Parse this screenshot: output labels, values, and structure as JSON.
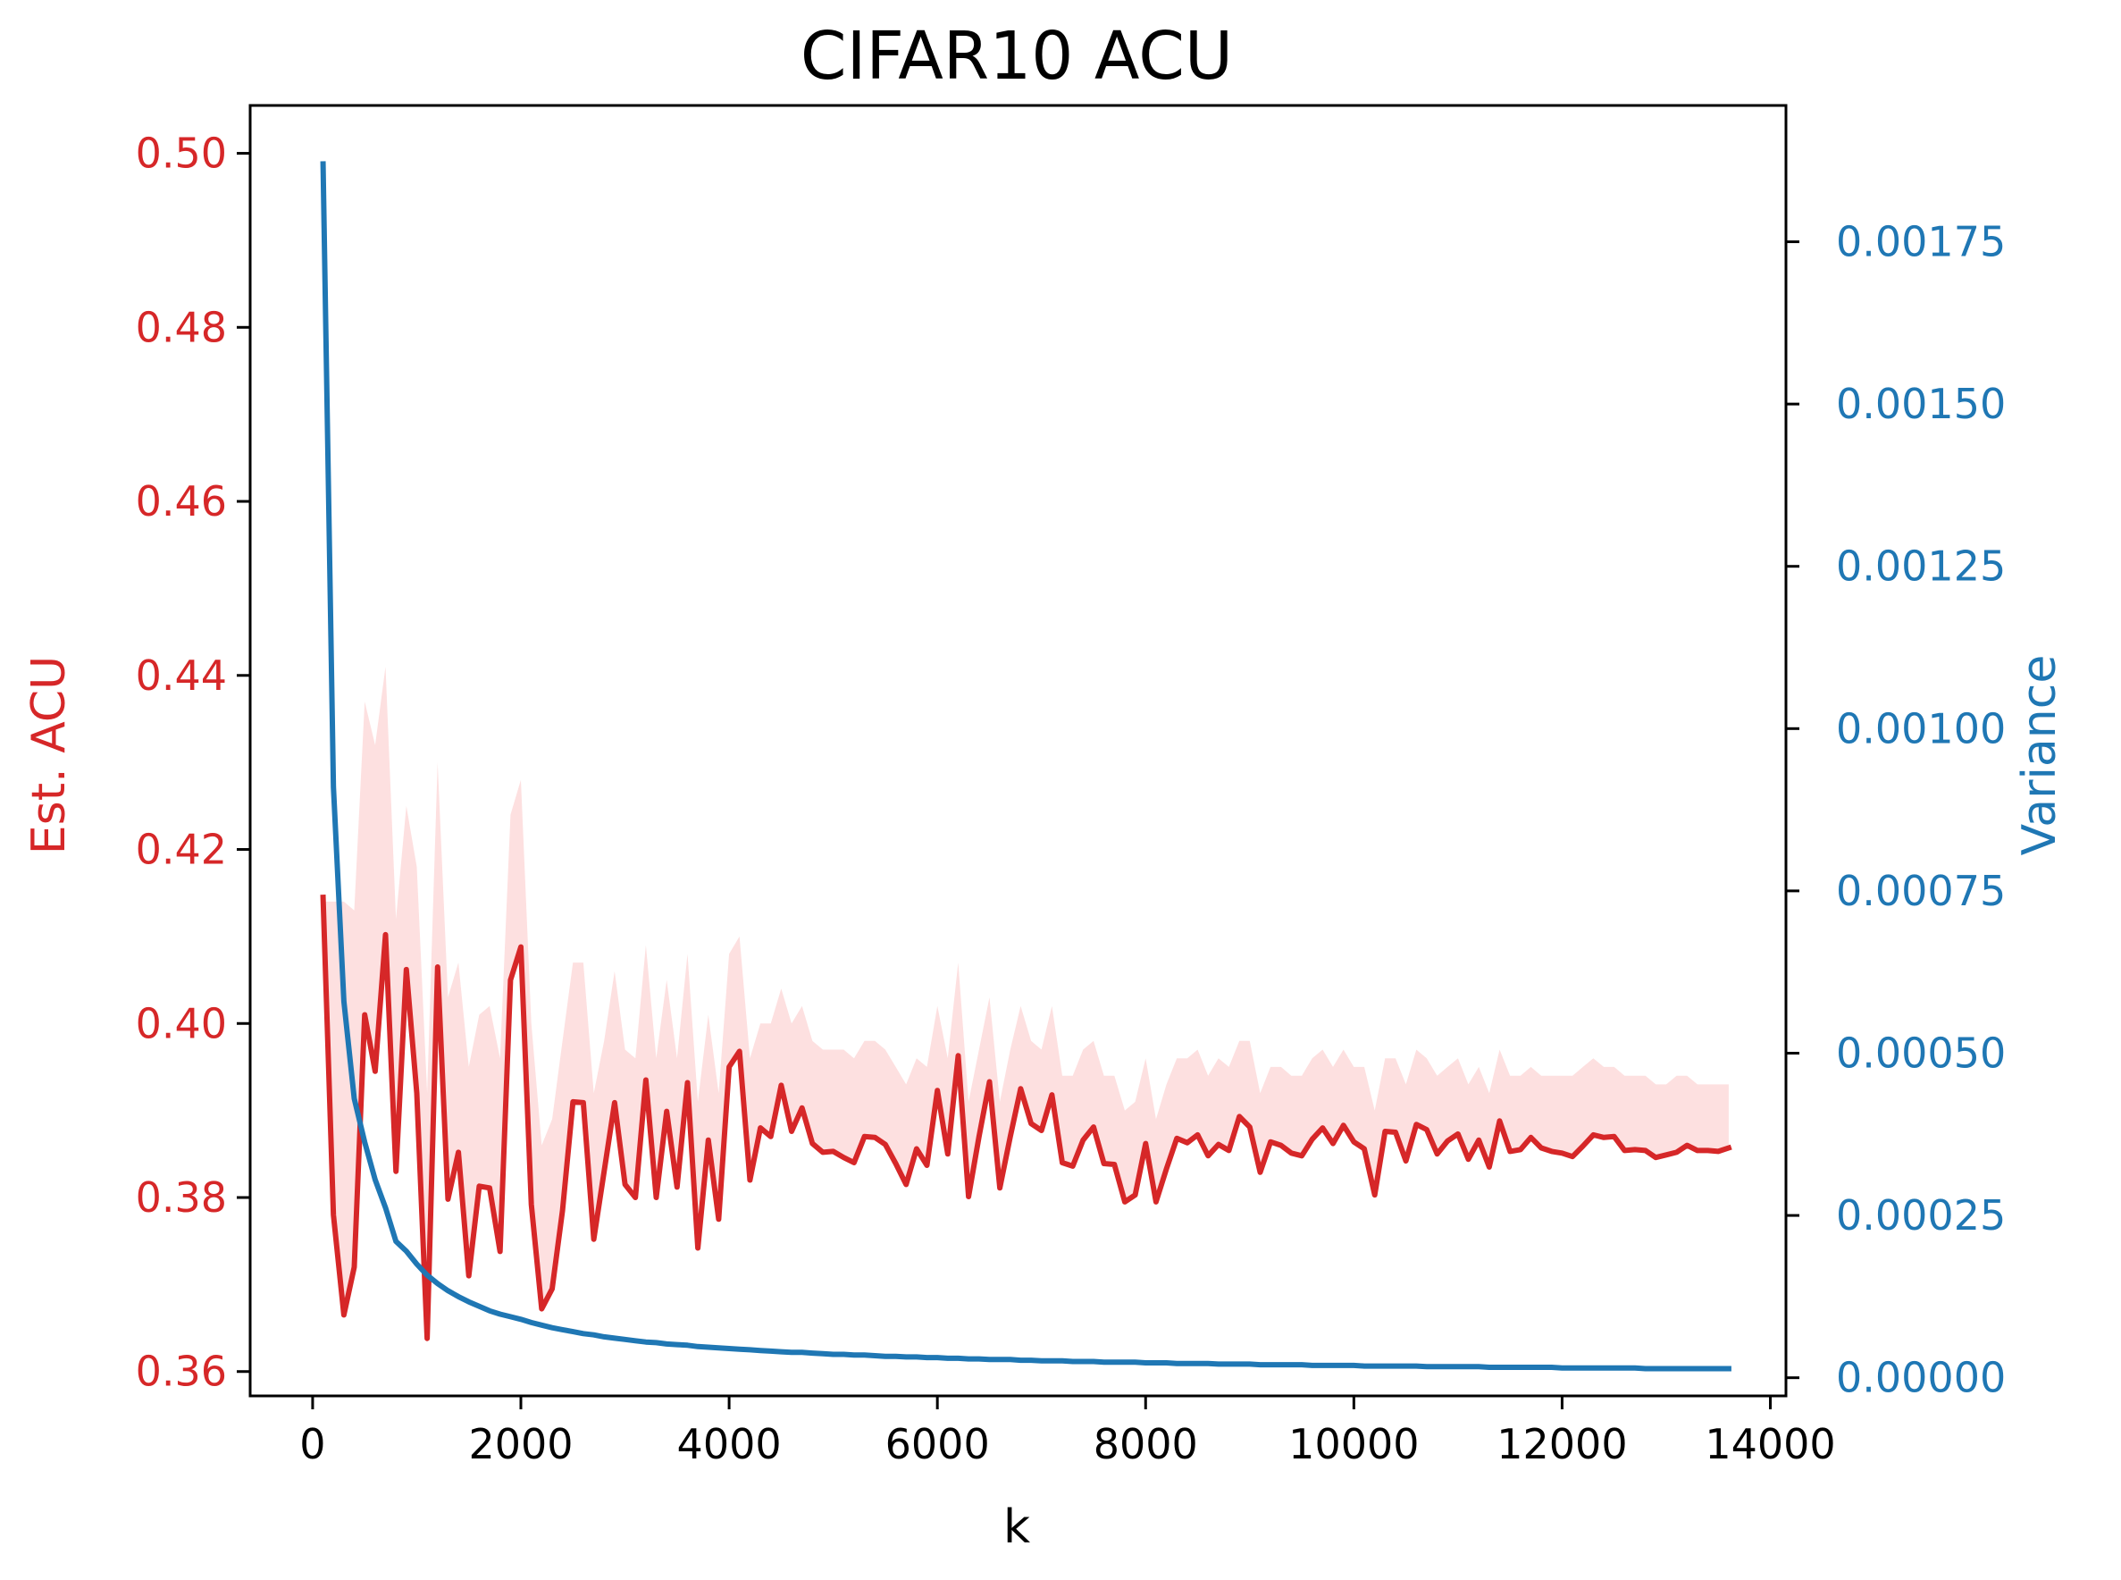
{
  "chart_data": {
    "type": "line",
    "title": "CIFAR10 ACU",
    "xlabel": "k",
    "ylabel_left": "Est. ACU",
    "ylabel_right": "Variance",
    "xlim": [
      -600,
      14150
    ],
    "ylim_left": [
      0.3572,
      0.5055
    ],
    "ylim_right": [
      -2.8e-05,
      0.00196
    ],
    "x_ticks": [
      0,
      2000,
      4000,
      6000,
      8000,
      10000,
      12000,
      14000
    ],
    "x_tick_labels": [
      "0",
      "2000",
      "4000",
      "6000",
      "8000",
      "10000",
      "12000",
      "14000"
    ],
    "y_left_ticks": [
      0.36,
      0.38,
      0.4,
      0.42,
      0.44,
      0.46,
      0.48,
      0.5
    ],
    "y_left_tick_labels": [
      "0.36",
      "0.38",
      "0.40",
      "0.42",
      "0.44",
      "0.46",
      "0.48",
      "0.50"
    ],
    "y_right_ticks": [
      0.0,
      0.00025,
      0.0005,
      0.00075,
      0.001,
      0.00125,
      0.0015,
      0.00175
    ],
    "y_right_tick_labels": [
      "0.00000",
      "0.00025",
      "0.00050",
      "0.00075",
      "0.00100",
      "0.00125",
      "0.00150",
      "0.00175"
    ],
    "colors": {
      "acu": "#d62728",
      "variance": "#1f77b4",
      "band": "#fde0e0",
      "axis": "#000000"
    },
    "series": [
      {
        "axis": "left",
        "color": "#d62728",
        "x": [
          100,
          200,
          300,
          400,
          500,
          600,
          700,
          800,
          900,
          1000,
          1100,
          1200,
          1300,
          1400,
          1500,
          1600,
          1700,
          1800,
          1900,
          2000,
          2100,
          2200,
          2300,
          2400,
          2500,
          2600,
          2700,
          2800,
          2900,
          3000,
          3100,
          3200,
          3300,
          3400,
          3500,
          3600,
          3700,
          3800,
          3900,
          4000,
          4100,
          4200,
          4300,
          4400,
          4500,
          4600,
          4700,
          4800,
          4900,
          5000,
          5100,
          5200,
          5300,
          5400,
          5500,
          5600,
          5700,
          5800,
          5900,
          6000,
          6100,
          6200,
          6300,
          6400,
          6500,
          6600,
          6700,
          6800,
          6900,
          7000,
          7100,
          7200,
          7300,
          7400,
          7500,
          7600,
          7700,
          7800,
          7900,
          8000,
          8100,
          8200,
          8300,
          8400,
          8500,
          8600,
          8700,
          8800,
          8900,
          9000,
          9100,
          9200,
          9300,
          9400,
          9500,
          9600,
          9700,
          9800,
          9900,
          10000,
          10100,
          10200,
          10300,
          10400,
          10500,
          10600,
          10700,
          10800,
          10900,
          11000,
          11100,
          11200,
          11300,
          11400,
          11500,
          11600,
          11700,
          11800,
          11900,
          12000,
          12100,
          12200,
          12300,
          12400,
          12500,
          12600,
          12700,
          12800,
          12900,
          13000,
          13100,
          13200,
          13300,
          13400,
          13500,
          13600
        ],
        "values": [
          0.4145,
          0.378,
          0.3665,
          0.372,
          0.401,
          0.3945,
          0.4102,
          0.383,
          0.4062,
          0.392,
          0.3638,
          0.4065,
          0.3798,
          0.3852,
          0.371,
          0.3813,
          0.3811,
          0.3738,
          0.405,
          0.4088,
          0.3792,
          0.3672,
          0.3695,
          0.3785,
          0.391,
          0.3909,
          0.3752,
          0.383,
          0.3909,
          0.3815,
          0.38,
          0.3935,
          0.38,
          0.3899,
          0.3812,
          0.3932,
          0.3742,
          0.3866,
          0.3775,
          0.395,
          0.3968,
          0.382,
          0.388,
          0.387,
          0.3929,
          0.3876,
          0.3903,
          0.3862,
          0.3852,
          0.3853,
          0.3846,
          0.384,
          0.387,
          0.3869,
          0.3861,
          0.3839,
          0.3815,
          0.3856,
          0.3837,
          0.3923,
          0.385,
          0.3963,
          0.3801,
          0.387,
          0.3933,
          0.3811,
          0.387,
          0.3925,
          0.3885,
          0.3877,
          0.3918,
          0.384,
          0.3836,
          0.3866,
          0.3881,
          0.3839,
          0.3838,
          0.3795,
          0.3803,
          0.3862,
          0.3795,
          0.3833,
          0.3868,
          0.3863,
          0.3872,
          0.3848,
          0.3861,
          0.3854,
          0.3893,
          0.3881,
          0.3829,
          0.3864,
          0.386,
          0.3851,
          0.3848,
          0.3867,
          0.388,
          0.3862,
          0.3883,
          0.3864,
          0.3856,
          0.3803,
          0.3876,
          0.3875,
          0.3842,
          0.3884,
          0.3878,
          0.385,
          0.3865,
          0.3873,
          0.3844,
          0.3866,
          0.3835,
          0.3888,
          0.3853,
          0.3855,
          0.3869,
          0.3857,
          0.3853,
          0.3851,
          0.3847,
          0.3859,
          0.3872,
          0.3869,
          0.387,
          0.3854,
          0.3855,
          0.3854,
          0.3846,
          0.3849,
          0.3852,
          0.386,
          0.3854,
          0.3854,
          0.3853,
          0.3857
        ]
      },
      {
        "axis": "left",
        "x": [
          100,
          200,
          300,
          400,
          500,
          600,
          700,
          800,
          900,
          1000,
          1100,
          1200,
          1300,
          1400,
          1500,
          1600,
          1700,
          1800,
          1900,
          2000,
          2100,
          2200,
          2300,
          2400,
          2500,
          2600,
          2700,
          2800,
          2900,
          3000,
          3100,
          3200,
          3300,
          3400,
          3500,
          3600,
          3700,
          3800,
          3900,
          4000,
          4100,
          4200,
          4300,
          4400,
          4500,
          4600,
          4700,
          4800,
          4900,
          5000,
          5100,
          5200,
          5300,
          5400,
          5500,
          5600,
          5700,
          5800,
          5900,
          6000,
          6100,
          6200,
          6300,
          6400,
          6500,
          6600,
          6700,
          6800,
          6900,
          7000,
          7100,
          7200,
          7300,
          7400,
          7500,
          7600,
          7700,
          7800,
          7900,
          8000,
          8100,
          8200,
          8300,
          8400,
          8500,
          8600,
          8700,
          8800,
          8900,
          9000,
          9100,
          9200,
          9300,
          9400,
          9500,
          9600,
          9700,
          9800,
          9900,
          10000,
          10100,
          10200,
          10300,
          10400,
          10500,
          10600,
          10700,
          10800,
          10900,
          11000,
          11100,
          11200,
          11300,
          11400,
          11500,
          11600,
          11700,
          11800,
          11900,
          12000,
          12100,
          12200,
          12300,
          12400,
          12500,
          12600,
          12700,
          12800,
          12900,
          13000,
          13100,
          13200,
          13300,
          13400,
          13500,
          13600
        ],
        "values_upper": [
          0.414,
          0.414,
          0.414,
          0.413,
          0.437,
          0.432,
          0.441,
          0.412,
          0.425,
          0.418,
          0.392,
          0.43,
          0.403,
          0.407,
          0.395,
          0.401,
          0.402,
          0.396,
          0.424,
          0.428,
          0.4,
          0.386,
          0.389,
          0.398,
          0.407,
          0.407,
          0.392,
          0.398,
          0.406,
          0.397,
          0.396,
          0.409,
          0.396,
          0.405,
          0.396,
          0.408,
          0.391,
          0.401,
          0.392,
          0.408,
          0.41,
          0.396,
          0.4,
          0.4,
          0.404,
          0.4,
          0.402,
          0.398,
          0.397,
          0.397,
          0.397,
          0.396,
          0.398,
          0.398,
          0.397,
          0.395,
          0.393,
          0.396,
          0.395,
          0.402,
          0.396,
          0.407,
          0.391,
          0.397,
          0.403,
          0.391,
          0.397,
          0.402,
          0.398,
          0.397,
          0.402,
          0.394,
          0.394,
          0.397,
          0.398,
          0.394,
          0.394,
          0.39,
          0.391,
          0.396,
          0.389,
          0.393,
          0.396,
          0.396,
          0.397,
          0.394,
          0.396,
          0.395,
          0.398,
          0.398,
          0.392,
          0.395,
          0.395,
          0.394,
          0.394,
          0.396,
          0.397,
          0.395,
          0.397,
          0.395,
          0.395,
          0.39,
          0.396,
          0.396,
          0.393,
          0.397,
          0.396,
          0.394,
          0.395,
          0.396,
          0.393,
          0.395,
          0.392,
          0.397,
          0.394,
          0.394,
          0.395,
          0.394,
          0.394,
          0.394,
          0.394,
          0.395,
          0.396,
          0.395,
          0.395,
          0.394,
          0.394,
          0.394,
          0.393,
          0.393,
          0.394,
          0.394,
          0.393,
          0.393,
          0.393,
          0.393
        ],
        "values_lower": [
          0.4145,
          0.378,
          0.3665,
          0.372,
          0.401,
          0.3945,
          0.4102,
          0.383,
          0.4062,
          0.392,
          0.3638,
          0.4065,
          0.3798,
          0.3852,
          0.371,
          0.3813,
          0.3811,
          0.3738,
          0.405,
          0.4088,
          0.3792,
          0.3672,
          0.3695,
          0.3785,
          0.391,
          0.3909,
          0.3752,
          0.383,
          0.3909,
          0.3815,
          0.38,
          0.3935,
          0.38,
          0.3899,
          0.3812,
          0.3932,
          0.3742,
          0.3866,
          0.3775,
          0.395,
          0.3968,
          0.382,
          0.388,
          0.387,
          0.3929,
          0.3876,
          0.3903,
          0.3862,
          0.3852,
          0.3853,
          0.3846,
          0.384,
          0.387,
          0.3869,
          0.3861,
          0.3839,
          0.3815,
          0.3856,
          0.3837,
          0.3923,
          0.385,
          0.3963,
          0.3801,
          0.387,
          0.3933,
          0.3811,
          0.387,
          0.3925,
          0.3885,
          0.3877,
          0.3918,
          0.384,
          0.3836,
          0.3866,
          0.3881,
          0.3839,
          0.3838,
          0.3795,
          0.3803,
          0.3862,
          0.3795,
          0.3833,
          0.3868,
          0.3863,
          0.3872,
          0.3848,
          0.3861,
          0.3854,
          0.3893,
          0.3881,
          0.3829,
          0.3864,
          0.386,
          0.3851,
          0.3848,
          0.3867,
          0.388,
          0.3862,
          0.3883,
          0.3864,
          0.3856,
          0.3803,
          0.3876,
          0.3875,
          0.3842,
          0.3884,
          0.3878,
          0.385,
          0.3865,
          0.3873,
          0.3844,
          0.3866,
          0.3835,
          0.3888,
          0.3853,
          0.3855,
          0.3869,
          0.3857,
          0.3853,
          0.3851,
          0.3847,
          0.3859,
          0.3872,
          0.3869,
          0.387,
          0.3854,
          0.3855,
          0.3854,
          0.3846,
          0.3849,
          0.3852,
          0.386,
          0.3854,
          0.3854,
          0.3853,
          0.3857
        ]
      },
      {
        "axis": "right",
        "color": "#1f77b4",
        "x": [
          100,
          200,
          300,
          400,
          500,
          600,
          700,
          800,
          900,
          1000,
          1100,
          1200,
          1300,
          1400,
          1500,
          1600,
          1700,
          1800,
          1900,
          2000,
          2100,
          2200,
          2300,
          2400,
          2500,
          2600,
          2700,
          2800,
          2900,
          3000,
          3100,
          3200,
          3300,
          3400,
          3500,
          3600,
          3700,
          3800,
          3900,
          4000,
          4100,
          4200,
          4300,
          4400,
          4500,
          4600,
          4700,
          4800,
          4900,
          5000,
          5100,
          5200,
          5300,
          5400,
          5500,
          5600,
          5700,
          5800,
          5900,
          6000,
          6100,
          6200,
          6300,
          6400,
          6500,
          6600,
          6700,
          6800,
          6900,
          7000,
          7100,
          7200,
          7300,
          7400,
          7500,
          7600,
          7700,
          7800,
          7900,
          8000,
          8100,
          8200,
          8300,
          8400,
          8500,
          8600,
          8700,
          8800,
          8900,
          9000,
          9100,
          9200,
          9300,
          9400,
          9500,
          9600,
          9700,
          9800,
          9900,
          10000,
          10100,
          10200,
          10300,
          10400,
          10500,
          10600,
          10700,
          10800,
          10900,
          11000,
          11100,
          11200,
          11300,
          11400,
          11500,
          11600,
          11700,
          11800,
          11900,
          12000,
          12100,
          12200,
          12300,
          12400,
          12500,
          12600,
          12700,
          12800,
          12900,
          13000,
          13100,
          13200,
          13300,
          13400,
          13500,
          13600
        ],
        "values": [
          0.00187,
          0.00091,
          0.00058,
          0.00043,
          0.000363,
          0.000305,
          0.000262,
          0.00021,
          0.000195,
          0.000175,
          0.000158,
          0.000145,
          0.000134,
          0.000125,
          0.000117,
          0.00011,
          0.000103,
          9.8e-05,
          9.4e-05,
          9e-05,
          8.5e-05,
          8.1e-05,
          7.7e-05,
          7.4e-05,
          7.1e-05,
          6.8e-05,
          6.6e-05,
          6.3e-05,
          6.1e-05,
          5.9e-05,
          5.7e-05,
          5.5e-05,
          5.4e-05,
          5.2e-05,
          5.1e-05,
          5e-05,
          4.8e-05,
          4.7e-05,
          4.6e-05,
          4.5e-05,
          4.4e-05,
          4.3e-05,
          4.2e-05,
          4.1e-05,
          4e-05,
          3.9e-05,
          3.9e-05,
          3.8e-05,
          3.7e-05,
          3.6e-05,
          3.6e-05,
          3.5e-05,
          3.5e-05,
          3.4e-05,
          3.3e-05,
          3.3e-05,
          3.2e-05,
          3.2e-05,
          3.1e-05,
          3.1e-05,
          3e-05,
          3e-05,
          2.9e-05,
          2.9e-05,
          2.8e-05,
          2.8e-05,
          2.8e-05,
          2.7e-05,
          2.7e-05,
          2.6e-05,
          2.6e-05,
          2.6e-05,
          2.5e-05,
          2.5e-05,
          2.5e-05,
          2.4e-05,
          2.4e-05,
          2.4e-05,
          2.4e-05,
          2.3e-05,
          2.3e-05,
          2.3e-05,
          2.2e-05,
          2.2e-05,
          2.2e-05,
          2.2e-05,
          2.1e-05,
          2.1e-05,
          2.1e-05,
          2.1e-05,
          2e-05,
          2e-05,
          2e-05,
          2e-05,
          2e-05,
          1.9e-05,
          1.9e-05,
          1.9e-05,
          1.9e-05,
          1.9e-05,
          1.8e-05,
          1.8e-05,
          1.8e-05,
          1.8e-05,
          1.8e-05,
          1.8e-05,
          1.7e-05,
          1.7e-05,
          1.7e-05,
          1.7e-05,
          1.7e-05,
          1.7e-05,
          1.6e-05,
          1.6e-05,
          1.6e-05,
          1.6e-05,
          1.6e-05,
          1.6e-05,
          1.6e-05,
          1.5e-05,
          1.5e-05,
          1.5e-05,
          1.5e-05,
          1.5e-05,
          1.5e-05,
          1.5e-05,
          1.5e-05,
          1.4e-05,
          1.4e-05,
          1.4e-05,
          1.4e-05,
          1.4e-05,
          1.4e-05,
          1.4e-05,
          1.4e-05,
          1.4e-05
        ]
      }
    ]
  }
}
